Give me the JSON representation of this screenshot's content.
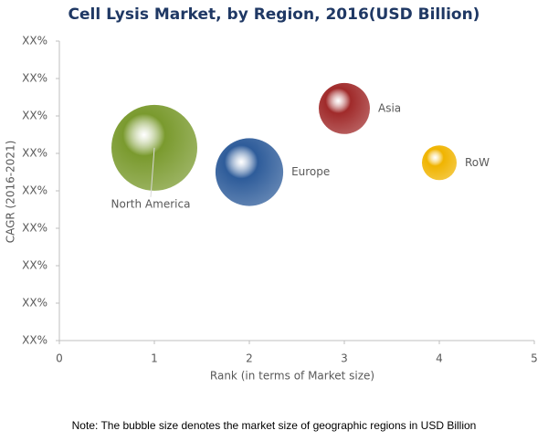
{
  "chart_data": {
    "type": "scatter",
    "title": "Cell Lysis Market, by Region, 2016(USD Billion)",
    "x_label": "Rank (in terms of Market size)",
    "y_label": "CAGR (2016-2021)",
    "note": "Note: The bubble size denotes the market size of geographic regions in USD Billion",
    "xlim": [
      0,
      5
    ],
    "xticks": [
      0,
      1,
      2,
      3,
      4,
      5
    ],
    "ylim": [
      0,
      8
    ],
    "yticks": [
      {
        "value": 0,
        "label": "XX%"
      },
      {
        "value": 1,
        "label": "XX%"
      },
      {
        "value": 2,
        "label": "XX%"
      },
      {
        "value": 3,
        "label": "XX%"
      },
      {
        "value": 4,
        "label": "XX%"
      },
      {
        "value": 5,
        "label": "XX%"
      },
      {
        "value": 6,
        "label": "XX%"
      },
      {
        "value": 7,
        "label": "XX%"
      },
      {
        "value": 8,
        "label": "XX%"
      }
    ],
    "series": [
      {
        "name": "North America",
        "color": "#7a9a2e",
        "x": [
          1
        ],
        "values": [
          5.15
        ],
        "sizes": [
          2.2
        ]
      },
      {
        "name": "Europe",
        "color": "#2e5c9a",
        "x": [
          2
        ],
        "values": [
          4.5
        ],
        "sizes": [
          1.37
        ]
      },
      {
        "name": "Asia",
        "color": "#a02a2a",
        "x": [
          3
        ],
        "values": [
          6.2
        ],
        "sizes": [
          0.78
        ]
      },
      {
        "name": "RoW",
        "color": "#f0b400",
        "x": [
          4
        ],
        "values": [
          4.75
        ],
        "sizes": [
          0.36
        ]
      }
    ]
  }
}
